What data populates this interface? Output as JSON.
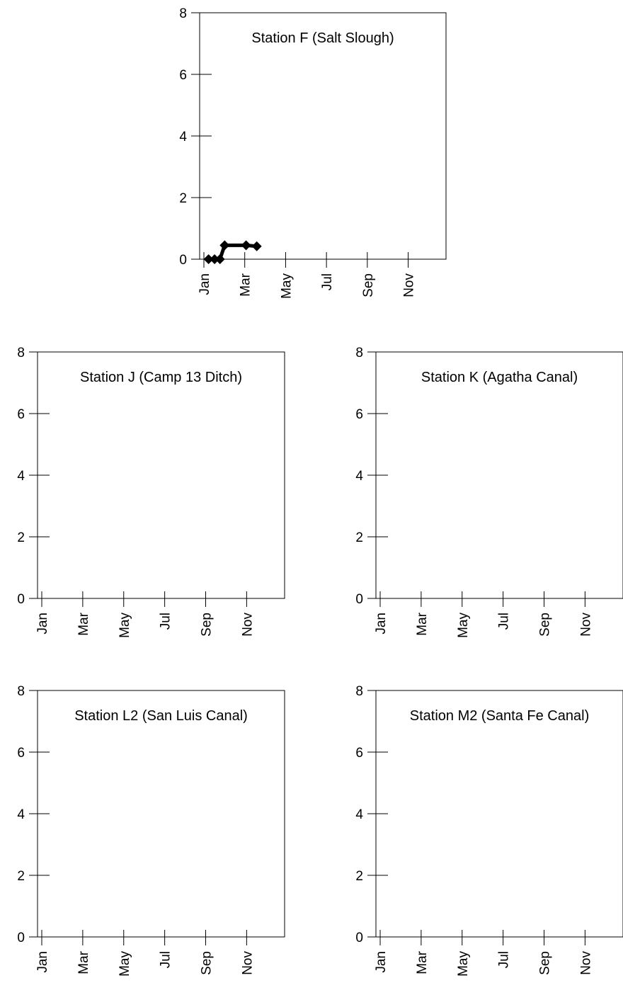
{
  "chart_data": [
    {
      "type": "line",
      "title": "Station F (Salt Slough)",
      "xlabel": "",
      "ylabel": "",
      "x_ticks": [
        "Jan",
        "Mar",
        "May",
        "Jul",
        "Sep",
        "Nov"
      ],
      "y_ticks": [
        "0",
        "2",
        "4",
        "6",
        "8"
      ],
      "ylim": [
        0,
        8
      ],
      "xlim": [
        "2000-01-01",
        "2000-12-31"
      ],
      "grid": false,
      "series": [
        {
          "x": [
            "2000-01-08",
            "2000-01-17",
            "2000-01-25",
            "2000-02-01",
            "2000-03-04",
            "2000-03-20"
          ],
          "values": [
            0,
            0,
            0,
            0.45,
            0.45,
            0.42
          ]
        }
      ]
    },
    {
      "type": "line",
      "title": "Station J (Camp 13 Ditch)",
      "xlabel": "",
      "ylabel": "",
      "x_ticks": [
        "Jan",
        "Mar",
        "May",
        "Jul",
        "Sep",
        "Nov"
      ],
      "y_ticks": [
        "0",
        "2",
        "4",
        "6",
        "8"
      ],
      "ylim": [
        0,
        8
      ],
      "xlim": [
        "2000-01-01",
        "2000-12-31"
      ],
      "grid": false,
      "series": []
    },
    {
      "type": "line",
      "title": "Station K (Agatha Canal)",
      "xlabel": "",
      "ylabel": "",
      "x_ticks": [
        "Jan",
        "Mar",
        "May",
        "Jul",
        "Sep",
        "Nov"
      ],
      "y_ticks": [
        "0",
        "2",
        "4",
        "6",
        "8"
      ],
      "ylim": [
        0,
        8
      ],
      "xlim": [
        "2000-01-01",
        "2000-12-31"
      ],
      "grid": false,
      "series": []
    },
    {
      "type": "line",
      "title": "Station L2 (San Luis Canal)",
      "xlabel": "",
      "ylabel": "",
      "x_ticks": [
        "Jan",
        "Mar",
        "May",
        "Jul",
        "Sep",
        "Nov"
      ],
      "y_ticks": [
        "0",
        "2",
        "4",
        "6",
        "8"
      ],
      "ylim": [
        0,
        8
      ],
      "xlim": [
        "2000-01-01",
        "2000-12-31"
      ],
      "grid": false,
      "series": []
    },
    {
      "type": "line",
      "title": "Station M2 (Santa Fe Canal)",
      "xlabel": "",
      "ylabel": "",
      "x_ticks": [
        "Jan",
        "Mar",
        "May",
        "Jul",
        "Sep",
        "Nov"
      ],
      "y_ticks": [
        "0",
        "2",
        "4",
        "6",
        "8"
      ],
      "ylim": [
        0,
        8
      ],
      "xlim": [
        "2000-01-01",
        "2000-12-31"
      ],
      "grid": false,
      "series": []
    }
  ]
}
